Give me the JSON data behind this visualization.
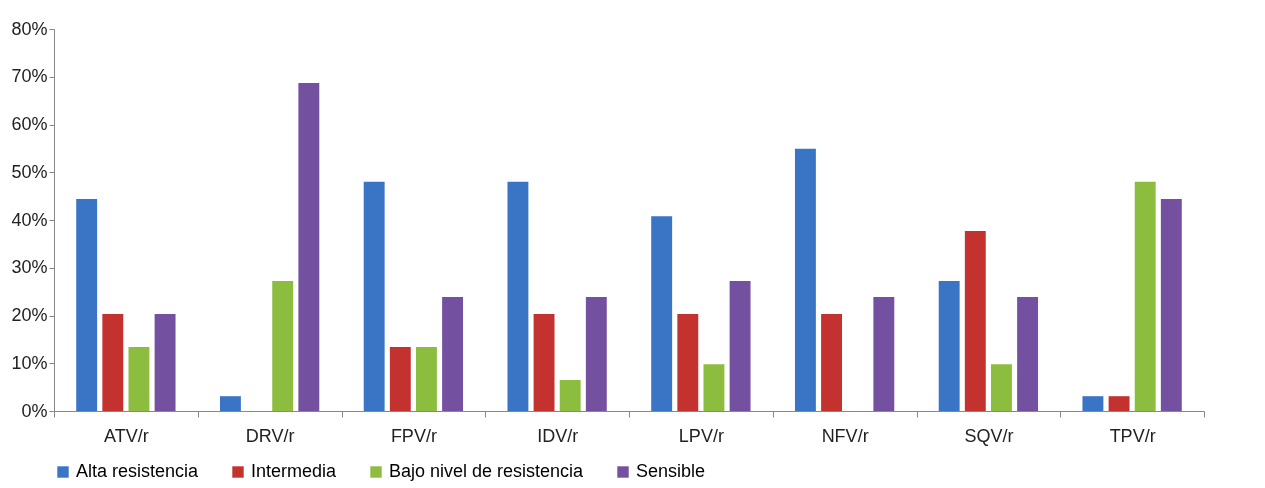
{
  "chart_data": {
    "type": "bar",
    "categories": [
      "ATV/r",
      "DRV/r",
      "FPV/r",
      "IDV/r",
      "LPV/r",
      "NFV/r",
      "SQV/r",
      "TPV/r"
    ],
    "series": [
      {
        "name": "Alta resistencia",
        "color": "#3a74c4",
        "values": [
          44.4,
          3.1,
          48,
          48,
          40.8,
          54.9,
          27.2,
          3.1
        ]
      },
      {
        "name": "Intermedia",
        "color": "#c4322f",
        "values": [
          20.3,
          0,
          13.4,
          20.3,
          20.3,
          20.3,
          37.7,
          3.1
        ]
      },
      {
        "name": "Bajo nivel de resistencia",
        "color": "#8cbd3f",
        "values": [
          13.4,
          27.2,
          13.4,
          6.5,
          9.8,
          0,
          9.8,
          48
        ]
      },
      {
        "name": "Sensible",
        "color": "#7450a0",
        "values": [
          20.3,
          68.7,
          23.9,
          23.9,
          27.2,
          23.9,
          23.9,
          44.4
        ]
      }
    ],
    "ylim": [
      0,
      80
    ],
    "yticks": [
      {
        "value": 0,
        "label": "0%"
      },
      {
        "value": 10,
        "label": "10%"
      },
      {
        "value": 20,
        "label": "20%"
      },
      {
        "value": 30,
        "label": "30%"
      },
      {
        "value": 40,
        "label": "40%"
      },
      {
        "value": 50,
        "label": "50%"
      },
      {
        "value": 60,
        "label": "60%"
      },
      {
        "value": 70,
        "label": "70%"
      },
      {
        "value": 80,
        "label": "80%"
      }
    ],
    "grid": false,
    "legend": "bottom"
  }
}
